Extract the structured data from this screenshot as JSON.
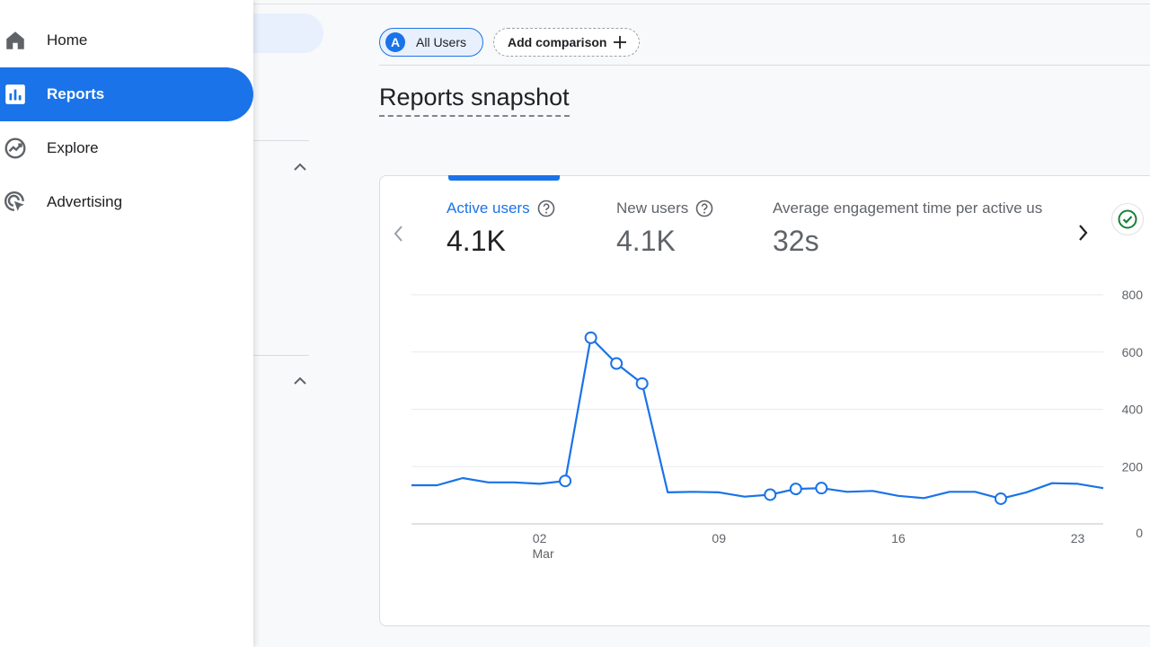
{
  "nav": {
    "items": [
      {
        "label": "Home",
        "icon": "home-icon"
      },
      {
        "label": "Reports",
        "icon": "reports-icon",
        "active": true
      },
      {
        "label": "Explore",
        "icon": "explore-icon"
      },
      {
        "label": "Advertising",
        "icon": "advertising-icon"
      }
    ]
  },
  "header": {
    "segment_avatar": "A",
    "segment_label": "All Users",
    "add_comparison_label": "Add comparison",
    "title": "Reports snapshot"
  },
  "metrics": [
    {
      "label": "Active users",
      "value": "4.1K",
      "selected": true
    },
    {
      "label": "New users",
      "value": "4.1K"
    },
    {
      "label": "Average engagement time per active us",
      "value": "32s"
    }
  ],
  "colors": {
    "accent": "#1a73e8",
    "success": "#188038"
  },
  "chart_data": {
    "type": "line",
    "series": [
      {
        "values": [
          135,
          135,
          160,
          145,
          145,
          140,
          150,
          650,
          560,
          490,
          110,
          112,
          110,
          95,
          102,
          122,
          125,
          112,
          115,
          98,
          90,
          112,
          112,
          88,
          110,
          142,
          140,
          125
        ]
      }
    ],
    "marked_points": [
      6,
      7,
      8,
      9,
      14,
      15,
      16,
      23
    ],
    "x_tick_labels": [
      {
        "index": 5,
        "label": "02",
        "sublabel": "Mar"
      },
      {
        "index": 12,
        "label": "09"
      },
      {
        "index": 19,
        "label": "16"
      },
      {
        "index": 26,
        "label": "23"
      }
    ],
    "y_tick_labels": [
      "0",
      "200",
      "400",
      "600",
      "800"
    ],
    "ylim": [
      0,
      800
    ],
    "y_axis_side": "right",
    "grid": true
  }
}
